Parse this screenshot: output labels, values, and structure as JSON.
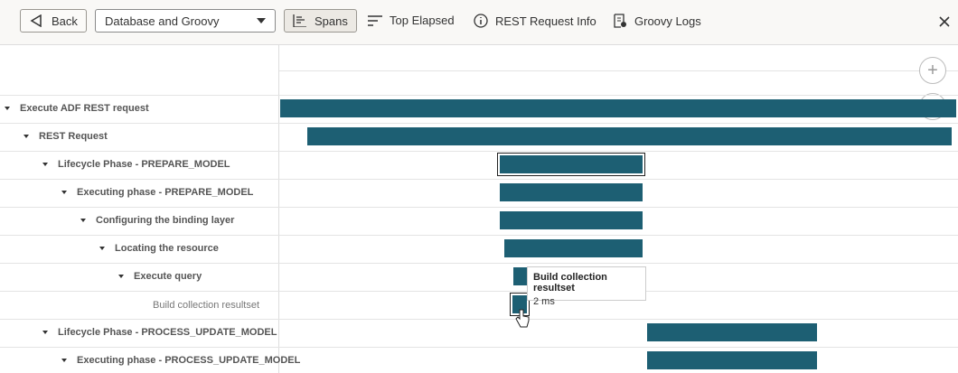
{
  "toolbar": {
    "back": "Back",
    "dropdown": "Database and Groovy",
    "spans": "Spans",
    "top_elapsed": "Top Elapsed",
    "rest_request_info": "REST Request Info",
    "groovy_logs": "Groovy Logs"
  },
  "rows": [
    "Execute ADF REST request",
    "REST Request",
    "Lifecycle Phase - PREPARE_MODEL",
    "Executing phase - PREPARE_MODEL",
    "Configuring the binding layer",
    "Locating the resource",
    "Execute query",
    "Build collection resultset",
    "Lifecycle Phase - PROCESS_UPDATE_MODEL",
    "Executing phase - PROCESS_UPDATE_MODEL"
  ],
  "tooltip": {
    "title": "Build collection resultset",
    "duration": "2 ms"
  }
}
